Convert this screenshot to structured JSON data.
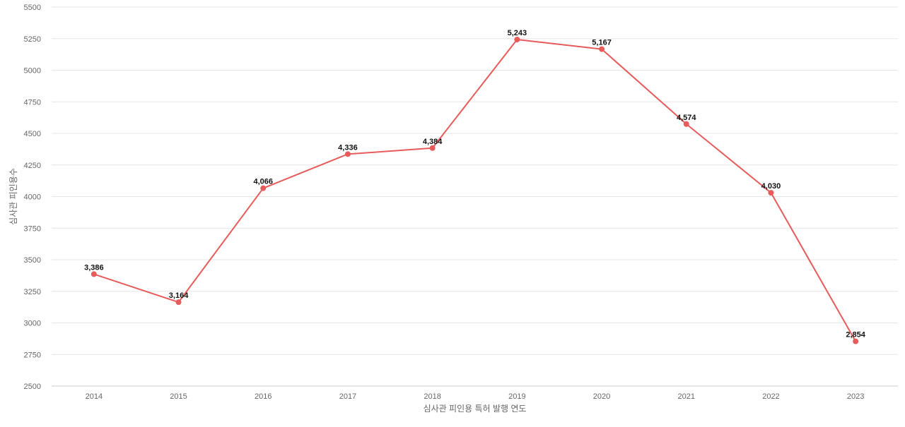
{
  "chart_data": {
    "type": "line",
    "title": "",
    "xlabel": "심사관 피인용 특허 발행 연도",
    "ylabel": "심사관 피인용수",
    "categories": [
      "2014",
      "2015",
      "2016",
      "2017",
      "2018",
      "2019",
      "2020",
      "2021",
      "2022",
      "2023"
    ],
    "series": [
      {
        "values": [
          3386,
          3164,
          4066,
          4336,
          4384,
          5243,
          5167,
          4574,
          4030,
          2854
        ],
        "value_labels": [
          "3,386",
          "3,164",
          "4,066",
          "4,336",
          "4,384",
          "5,243",
          "5,167",
          "4,574",
          "4,030",
          "2,854"
        ]
      }
    ],
    "ylim": [
      2500,
      5500
    ],
    "y_ticks": [
      "2500",
      "2750",
      "3000",
      "3250",
      "3500",
      "3750",
      "4000",
      "4250",
      "4500",
      "4750",
      "5000",
      "5250",
      "5500"
    ],
    "grid": true,
    "line_color": "#e85b5b",
    "gridline_color": "#e6e6e6"
  }
}
